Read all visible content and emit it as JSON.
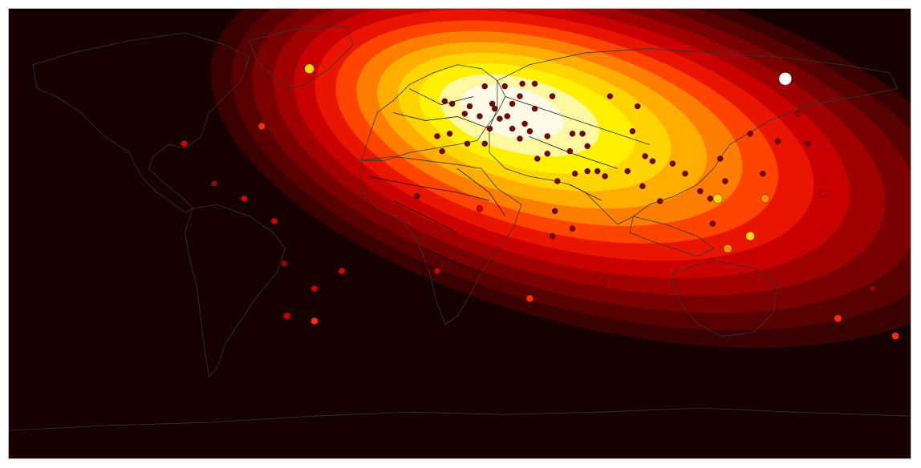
{
  "map": {
    "projection": "equirectangular",
    "colors": {
      "background": "#160000",
      "coastline": "#2a3a3a",
      "border": "#000000",
      "point_stroke": "#000000"
    },
    "density_levels": [
      {
        "level": 1,
        "color": "#3a0000"
      },
      {
        "level": 2,
        "color": "#580000"
      },
      {
        "level": 3,
        "color": "#7a0000"
      },
      {
        "level": 4,
        "color": "#a00000"
      },
      {
        "level": 5,
        "color": "#c80000"
      },
      {
        "level": 6,
        "color": "#ea1500"
      },
      {
        "level": 7,
        "color": "#ff4400"
      },
      {
        "level": 8,
        "color": "#ff7d00"
      },
      {
        "level": 9,
        "color": "#ffae00"
      },
      {
        "level": 10,
        "color": "#ffd400"
      },
      {
        "level": 11,
        "color": "#fff000"
      },
      {
        "level": 12,
        "color": "#fff8a0"
      },
      {
        "level": 13,
        "color": "#fffbe6"
      }
    ],
    "points": [
      {
        "lon": 130,
        "lat": 62,
        "value": 1.0
      },
      {
        "lon": -60,
        "lat": 66,
        "value": 0.6
      },
      {
        "lon": -110,
        "lat": 36,
        "value": 0.25
      },
      {
        "lon": -79,
        "lat": 43,
        "value": 0.3
      },
      {
        "lon": -86,
        "lat": 14,
        "value": 0.2
      },
      {
        "lon": -98,
        "lat": 20,
        "value": 0.15
      },
      {
        "lon": -74,
        "lat": 5,
        "value": 0.2
      },
      {
        "lon": -47,
        "lat": -15,
        "value": 0.25
      },
      {
        "lon": -69,
        "lat": -33,
        "value": 0.25
      },
      {
        "lon": -58,
        "lat": -35,
        "value": 0.3
      },
      {
        "lon": -58,
        "lat": -22,
        "value": 0.2
      },
      {
        "lon": -70,
        "lat": -12,
        "value": 0.15
      },
      {
        "lon": -9,
        "lat": -15,
        "value": 0.2
      },
      {
        "lon": 28,
        "lat": -26,
        "value": 0.3
      },
      {
        "lon": 8,
        "lat": 10,
        "value": 0.2
      },
      {
        "lon": 57,
        "lat": -20,
        "value": 0.15
      },
      {
        "lon": 151,
        "lat": -34,
        "value": 0.35
      },
      {
        "lon": 174,
        "lat": -41,
        "value": 0.3
      },
      {
        "lon": 165,
        "lat": -22,
        "value": 0.15
      },
      {
        "lon": 145,
        "lat": 16,
        "value": 0.2
      },
      {
        "lon": 122,
        "lat": 14,
        "value": 0.45
      },
      {
        "lon": 116,
        "lat": -1,
        "value": 0.5
      },
      {
        "lon": 103,
        "lat": 14,
        "value": 0.55
      },
      {
        "lon": 107,
        "lat": -6,
        "value": 0.45
      },
      {
        "lon": 90,
        "lat": 24,
        "value": 0.1
      },
      {
        "lon": 77,
        "lat": 29,
        "value": 0.1
      },
      {
        "lon": 101,
        "lat": 4,
        "value": 0.1
      },
      {
        "lon": 121,
        "lat": 24,
        "value": 0.1
      },
      {
        "lon": 60,
        "lat": 55,
        "value": 0.1
      },
      {
        "lon": 30,
        "lat": 60,
        "value": 0.1
      },
      {
        "lon": 2,
        "lat": 48,
        "value": 0.1
      },
      {
        "lon": 13,
        "lat": 52,
        "value": 0.1
      },
      {
        "lon": 21,
        "lat": 52,
        "value": 0.1
      },
      {
        "lon": -4,
        "lat": 40,
        "value": 0.1
      },
      {
        "lon": 12,
        "lat": 42,
        "value": 0.1
      },
      {
        "lon": 24,
        "lat": 38,
        "value": 0.1
      },
      {
        "lon": 35,
        "lat": 39,
        "value": 0.1
      },
      {
        "lon": 44,
        "lat": 33,
        "value": 0.1
      },
      {
        "lon": 51,
        "lat": 25,
        "value": 0.1
      },
      {
        "lon": 55,
        "lat": 25,
        "value": 0.1
      },
      {
        "lon": 31,
        "lat": 30,
        "value": 0.1
      },
      {
        "lon": -7,
        "lat": 33,
        "value": 0.1
      },
      {
        "lon": 3,
        "lat": 36,
        "value": 0.1
      },
      {
        "lon": 10,
        "lat": 36,
        "value": 0.1
      },
      {
        "lon": 69,
        "lat": 41,
        "value": 0.1
      },
      {
        "lon": 74,
        "lat": 31,
        "value": 0.1
      },
      {
        "lon": 85,
        "lat": 28,
        "value": 0.1
      },
      {
        "lon": 104,
        "lat": 30,
        "value": 0.1
      },
      {
        "lon": 116,
        "lat": 40,
        "value": 0.1
      },
      {
        "lon": 127,
        "lat": 37,
        "value": 0.1
      },
      {
        "lon": 139,
        "lat": 36,
        "value": 0.1
      },
      {
        "lon": 135,
        "lat": 48,
        "value": 0.15
      },
      {
        "lon": 73,
        "lat": 19,
        "value": 0.1
      },
      {
        "lon": 80,
        "lat": 13,
        "value": 0.1
      },
      {
        "lon": 100,
        "lat": 14,
        "value": 0.1
      },
      {
        "lon": 106,
        "lat": 21,
        "value": 0.1
      },
      {
        "lon": 96,
        "lat": 17,
        "value": 0.1
      },
      {
        "lon": 38,
        "lat": 9,
        "value": 0.1
      },
      {
        "lon": 37,
        "lat": -1,
        "value": 0.1
      },
      {
        "lon": 45,
        "lat": 2,
        "value": 0.1
      },
      {
        "lon": -17,
        "lat": 15,
        "value": 0.1
      },
      {
        "lon": 18,
        "lat": 59,
        "value": 0.1
      },
      {
        "lon": 10,
        "lat": 59,
        "value": 0.1
      },
      {
        "lon": 25,
        "lat": 60,
        "value": 0.1
      },
      {
        "lon": 24,
        "lat": 55,
        "value": 0.1
      },
      {
        "lon": 14,
        "lat": 50,
        "value": 0.1
      },
      {
        "lon": 19,
        "lat": 47,
        "value": 0.1
      },
      {
        "lon": 26,
        "lat": 44,
        "value": 0.1
      },
      {
        "lon": 21,
        "lat": 42,
        "value": 0.1
      },
      {
        "lon": 16,
        "lat": 46,
        "value": 0.1
      },
      {
        "lon": 8,
        "lat": 47,
        "value": 0.1
      },
      {
        "lon": 4,
        "lat": 51,
        "value": 0.1
      },
      {
        "lon": -6,
        "lat": 53,
        "value": 0.1
      },
      {
        "lon": -3,
        "lat": 52,
        "value": 0.1
      },
      {
        "lon": -9,
        "lat": 39,
        "value": 0.1
      },
      {
        "lon": 28,
        "lat": 41,
        "value": 0.1
      },
      {
        "lon": 30,
        "lat": 50,
        "value": 0.1
      },
      {
        "lon": 37,
        "lat": 55,
        "value": 0.1
      },
      {
        "lon": 45,
        "lat": 40,
        "value": 0.1
      },
      {
        "lon": 49,
        "lat": 40,
        "value": 0.1
      },
      {
        "lon": 35,
        "lat": 32,
        "value": 0.1
      },
      {
        "lon": 39,
        "lat": 21,
        "value": 0.1
      },
      {
        "lon": 46,
        "lat": 24,
        "value": 0.1
      },
      {
        "lon": 58,
        "lat": 23,
        "value": 0.1
      },
      {
        "lon": 67,
        "lat": 25,
        "value": 0.1
      },
      {
        "lon": 51,
        "lat": 35,
        "value": 0.1
      },
      {
        "lon": 71,
        "lat": 51,
        "value": 0.1
      }
    ]
  }
}
